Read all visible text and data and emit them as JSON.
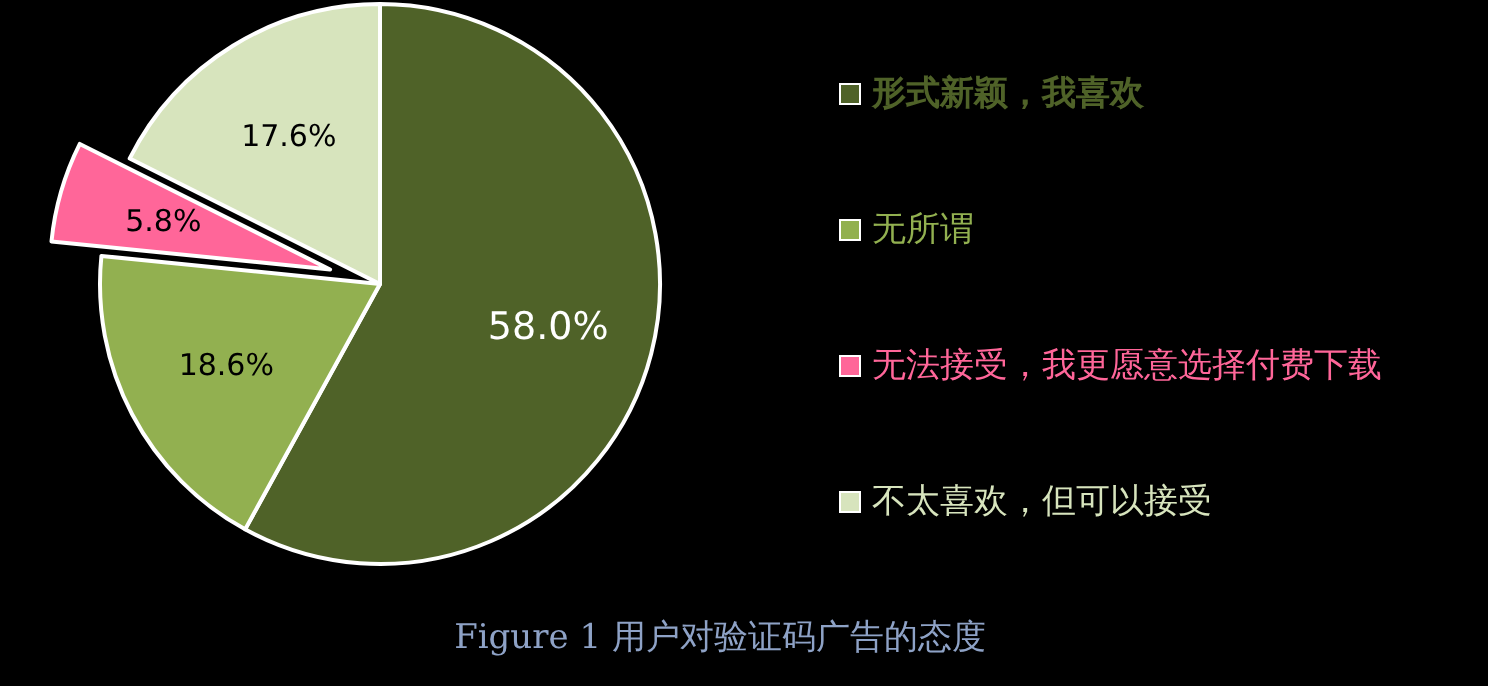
{
  "chart_data": {
    "type": "pie",
    "title": "Figure 1 用户对验证码广告的态度",
    "categories": [
      "形式新颖，我喜欢",
      "无所谓",
      "无法接受，我更愿意选择付费下载",
      "不太喜欢，但可以接受"
    ],
    "values": [
      58.0,
      18.6,
      5.8,
      17.6
    ],
    "value_labels": [
      "58.0%",
      "18.6%",
      "5.8%",
      "17.6%"
    ],
    "colors": [
      "#4f6228",
      "#92b050",
      "#ff6699",
      "#d7e4bd"
    ],
    "legend": "right"
  }
}
